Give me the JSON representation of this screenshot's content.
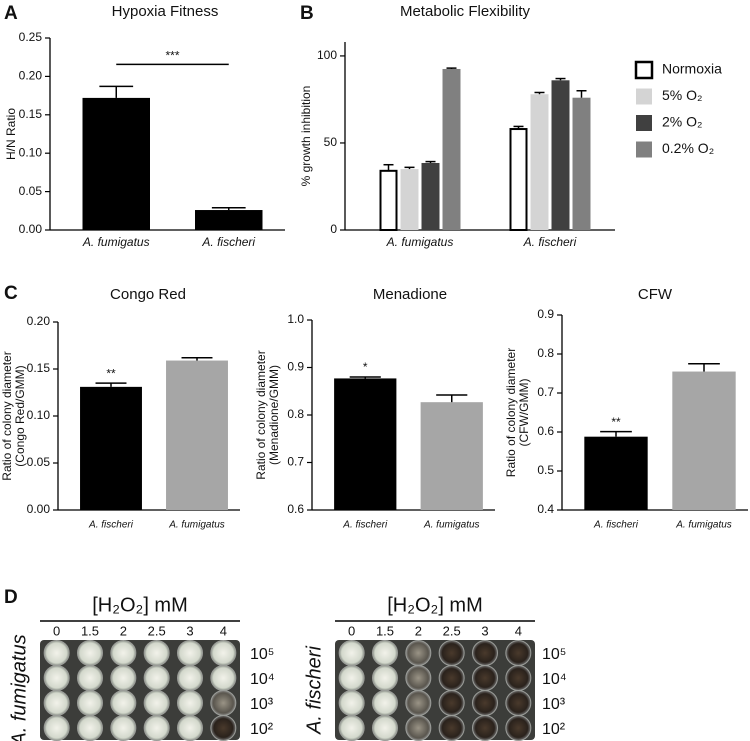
{
  "chart_data": [
    {
      "type": "bar",
      "panel": "A",
      "title": "Hypoxia Fitness",
      "y_label": [
        "H/N Ratio"
      ],
      "categories": [
        "A. fumigatus",
        "A. fischeri"
      ],
      "values": [
        0.172,
        0.026
      ],
      "errors": [
        0.015,
        0.003
      ],
      "colors": [
        "#000000",
        "#000000"
      ],
      "annotation": "***",
      "ylim": [
        0,
        0.25
      ],
      "yticks": [
        {
          "value": 0,
          "label": "0.00"
        },
        0.05,
        {
          "value": 0.1,
          "label": "0.10"
        },
        0.15,
        {
          "value": 0.2,
          "label": "0.20"
        },
        0.25
      ]
    },
    {
      "type": "bar",
      "panel": "B",
      "title": "Metabolic Flexibility",
      "y_label": [
        "% growth inhibition"
      ],
      "categories": [
        "A. fumigatus",
        "A. fischeri"
      ],
      "series": [
        {
          "name": "Normoxia",
          "color": "#ffffff",
          "values": [
            34,
            58
          ],
          "errors": [
            3.5,
            1.5
          ]
        },
        {
          "name": "5% O₂",
          "color": "#d4d4d4",
          "values": [
            35,
            78
          ],
          "errors": [
            1,
            1
          ]
        },
        {
          "name": "2% O₂",
          "color": "#404040",
          "values": [
            38.5,
            86
          ],
          "errors": [
            0.8,
            1
          ]
        },
        {
          "name": "0.2% O₂",
          "color": "#808080",
          "values": [
            92.5,
            76
          ],
          "errors": [
            0.5,
            4
          ]
        }
      ],
      "legend": "right",
      "ylim": [
        0,
        108
      ],
      "yticks": [
        0,
        50,
        100
      ]
    },
    {
      "type": "bar",
      "panel": "C",
      "title": "Congo Red",
      "y_label": [
        "Ratio of colony diameter",
        "(Congo Red/GMM)"
      ],
      "categories": [
        "A. fischeri",
        "A. fumigatus"
      ],
      "values": [
        0.131,
        0.159
      ],
      "errors": [
        0.004,
        0.003
      ],
      "colors": [
        "#000000",
        "#a6a6a6"
      ],
      "annotation": "**",
      "ylim": [
        0,
        0.2
      ],
      "yticks": [
        {
          "value": 0,
          "label": "0.00"
        },
        0.05,
        {
          "value": 0.1,
          "label": "0.10"
        },
        0.15,
        {
          "value": 0.2,
          "label": "0.20"
        }
      ]
    },
    {
      "type": "bar",
      "title": "Menadione",
      "y_label": [
        "Ratio of colony diameter",
        "(Menadione/GMM)"
      ],
      "categories": [
        "A. fischeri",
        "A. fumigatus"
      ],
      "values": [
        0.877,
        0.827
      ],
      "errors": [
        0.003,
        0.015
      ],
      "colors": [
        "#000000",
        "#a6a6a6"
      ],
      "annotation": "*",
      "ylim": [
        0.6,
        1.0
      ],
      "yticks": [
        0.6,
        0.7,
        0.8,
        0.9,
        {
          "value": 1.0,
          "label": "1.0"
        }
      ]
    },
    {
      "type": "bar",
      "title": "CFW",
      "y_label": [
        "Ratio of colony diameter",
        "(CFW/GMM)"
      ],
      "categories": [
        "A. fischeri",
        "A. fumigatus"
      ],
      "values": [
        0.588,
        0.755
      ],
      "errors": [
        0.013,
        0.02
      ],
      "colors": [
        "#000000",
        "#a6a6a6"
      ],
      "annotation": "**",
      "ylim": [
        0.4,
        0.9
      ],
      "yticks": [
        0.4,
        0.5,
        0.6,
        0.7,
        0.8,
        0.9
      ]
    }
  ],
  "plates": {
    "panel": "D",
    "label": "[H₂O₂] mM",
    "concentrations": [
      "0",
      "1.5",
      "2",
      "2.5",
      "3",
      "4"
    ],
    "dilutions": [
      "10⁵",
      "10⁴",
      "10³",
      "10²"
    ],
    "strains": [
      "A. fumigatus",
      "A. fischeri"
    ]
  }
}
